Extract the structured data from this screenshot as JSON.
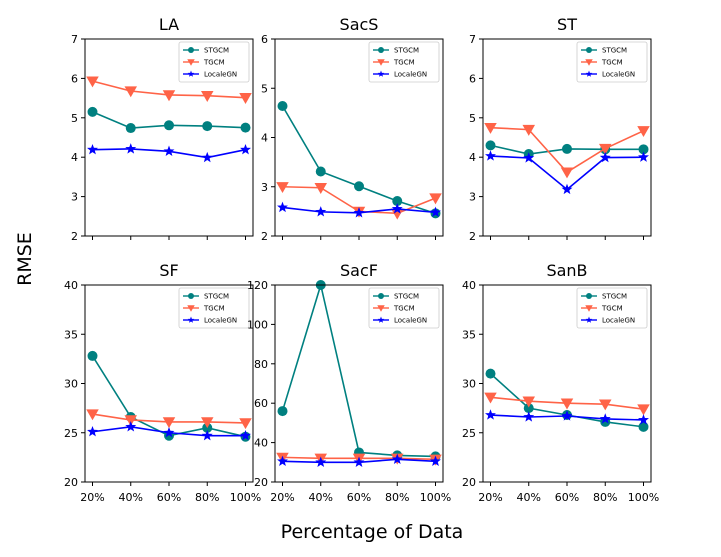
{
  "figure": {
    "ylabel": "RMSE",
    "xlabel": "Percentage of Data"
  },
  "legend_labels": [
    "STGCM",
    "TGCM",
    "LocaleGN"
  ],
  "colors": {
    "STGCM": "#008080",
    "TGCM": "#ff6347",
    "LocaleGN": "#0000ff"
  },
  "chart_data": [
    {
      "type": "line",
      "title": "LA",
      "categories": [
        "20%",
        "40%",
        "60%",
        "80%",
        "100%"
      ],
      "ylim": [
        2,
        7
      ],
      "yticks": [
        2,
        3,
        4,
        5,
        6,
        7
      ],
      "legend": "top-right",
      "series": [
        {
          "name": "STGCM",
          "values": [
            5.15,
            4.74,
            4.81,
            4.79,
            4.75
          ]
        },
        {
          "name": "TGCM",
          "values": [
            5.93,
            5.68,
            5.58,
            5.56,
            5.51
          ]
        },
        {
          "name": "LocaleGN",
          "values": [
            4.19,
            4.21,
            4.15,
            3.99,
            4.19
          ]
        }
      ]
    },
    {
      "type": "line",
      "title": "SacS",
      "categories": [
        "20%",
        "40%",
        "60%",
        "80%",
        "100%"
      ],
      "ylim": [
        2,
        6
      ],
      "yticks": [
        2,
        3,
        4,
        5,
        6
      ],
      "legend": "top-right",
      "series": [
        {
          "name": "STGCM",
          "values": [
            4.64,
            3.31,
            3.01,
            2.71,
            2.46
          ]
        },
        {
          "name": "TGCM",
          "values": [
            3.0,
            2.98,
            2.5,
            2.46,
            2.77
          ]
        },
        {
          "name": "LocaleGN",
          "values": [
            2.58,
            2.49,
            2.47,
            2.55,
            2.48
          ]
        }
      ]
    },
    {
      "type": "line",
      "title": "ST",
      "categories": [
        "20%",
        "40%",
        "60%",
        "80%",
        "100%"
      ],
      "ylim": [
        2,
        7
      ],
      "yticks": [
        2,
        3,
        4,
        5,
        6,
        7
      ],
      "legend": "top-right",
      "series": [
        {
          "name": "STGCM",
          "values": [
            4.3,
            4.08,
            4.21,
            4.2,
            4.2
          ]
        },
        {
          "name": "TGCM",
          "values": [
            4.75,
            4.7,
            3.62,
            4.22,
            4.67
          ]
        },
        {
          "name": "LocaleGN",
          "values": [
            4.03,
            3.98,
            3.18,
            3.99,
            4.0
          ]
        }
      ]
    },
    {
      "type": "line",
      "title": "SF",
      "categories": [
        "20%",
        "40%",
        "60%",
        "80%",
        "100%"
      ],
      "ylim": [
        20,
        40
      ],
      "yticks": [
        20,
        25,
        30,
        35,
        40
      ],
      "legend": "top-right",
      "series": [
        {
          "name": "STGCM",
          "values": [
            32.8,
            26.6,
            24.7,
            25.5,
            24.6
          ]
        },
        {
          "name": "TGCM",
          "values": [
            26.9,
            26.3,
            26.1,
            26.1,
            26.0
          ]
        },
        {
          "name": "LocaleGN",
          "values": [
            25.1,
            25.6,
            25.0,
            24.7,
            24.7
          ]
        }
      ]
    },
    {
      "type": "line",
      "title": "SacF",
      "categories": [
        "20%",
        "40%",
        "60%",
        "80%",
        "100%"
      ],
      "ylim": [
        20,
        120
      ],
      "yticks": [
        20,
        40,
        60,
        80,
        100,
        120
      ],
      "legend": "top-right",
      "series": [
        {
          "name": "STGCM",
          "values": [
            56,
            120,
            35,
            33.5,
            33
          ]
        },
        {
          "name": "TGCM",
          "values": [
            32.5,
            32,
            32,
            32,
            31.5
          ]
        },
        {
          "name": "LocaleGN",
          "values": [
            30.5,
            30,
            30,
            31.5,
            30.5
          ]
        }
      ]
    },
    {
      "type": "line",
      "title": "SanB",
      "categories": [
        "20%",
        "40%",
        "60%",
        "80%",
        "100%"
      ],
      "ylim": [
        20,
        40
      ],
      "yticks": [
        20,
        25,
        30,
        35,
        40
      ],
      "legend": "top-right",
      "series": [
        {
          "name": "STGCM",
          "values": [
            31.0,
            27.5,
            26.8,
            26.1,
            25.6
          ]
        },
        {
          "name": "TGCM",
          "values": [
            28.6,
            28.2,
            28.0,
            27.9,
            27.4
          ]
        },
        {
          "name": "LocaleGN",
          "values": [
            26.8,
            26.6,
            26.7,
            26.4,
            26.3
          ]
        }
      ]
    }
  ]
}
